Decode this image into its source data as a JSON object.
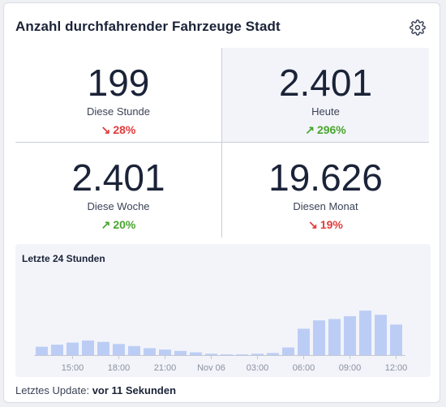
{
  "card": {
    "title": "Anzahl durchfahrender Fahrzeuge Stadt",
    "settings_icon": "gear-icon"
  },
  "stats": [
    {
      "value": "199",
      "label": "Diese Stunde",
      "delta": "28%",
      "direction": "down"
    },
    {
      "value": "2.401",
      "label": "Heute",
      "delta": "296%",
      "direction": "up"
    },
    {
      "value": "2.401",
      "label": "Diese Woche",
      "delta": "20%",
      "direction": "up"
    },
    {
      "value": "19.626",
      "label": "Diesen Monat",
      "delta": "19%",
      "direction": "down"
    }
  ],
  "colors": {
    "down": "#e13b3b",
    "up": "#4aa52e",
    "bar": "#bccdf5",
    "text": "#1b2338"
  },
  "chart_data": {
    "type": "bar",
    "title": "Letzte 24 Stunden",
    "x_tick_labels": [
      "15:00",
      "18:00",
      "21:00",
      "Nov 06",
      "03:00",
      "06:00",
      "09:00",
      "12:00"
    ],
    "values": [
      12,
      15,
      18,
      21,
      19,
      16,
      13,
      10,
      8,
      6,
      4,
      2,
      1,
      1,
      2,
      3,
      11,
      38,
      50,
      52,
      56,
      64,
      58,
      44
    ],
    "ylim": [
      0,
      70
    ],
    "grid": false
  },
  "footer": {
    "label": "Letztes Update:",
    "value": "vor 11 Sekunden"
  }
}
